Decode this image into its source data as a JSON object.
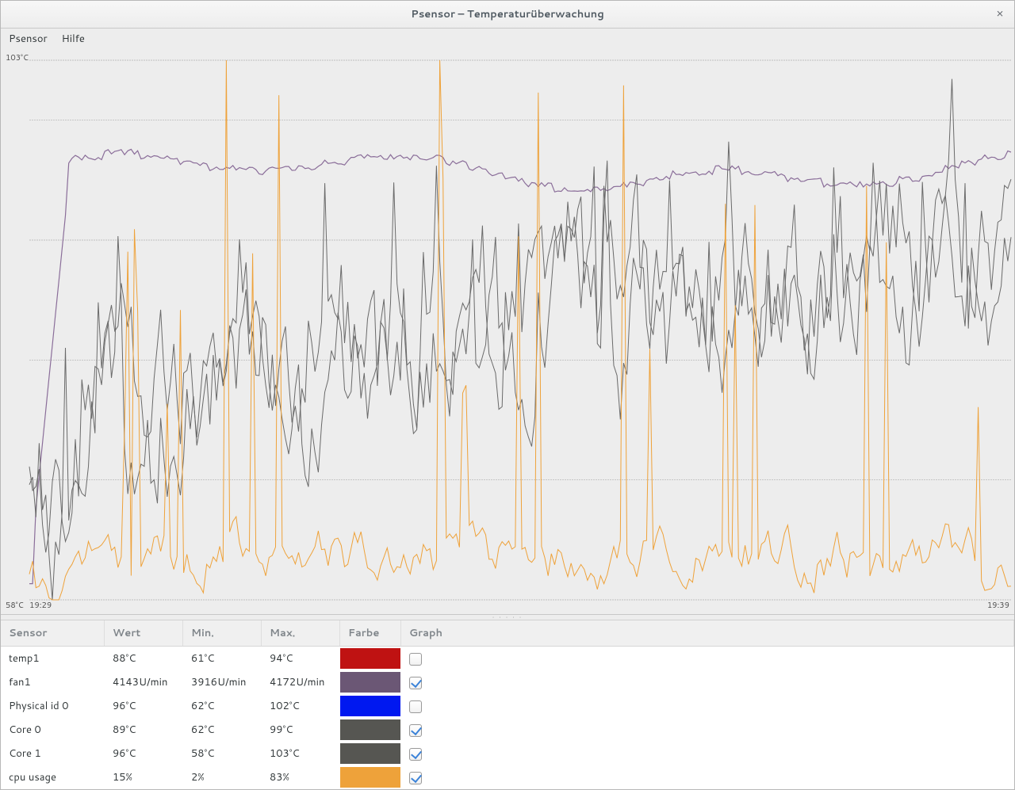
{
  "window": {
    "title": "Psensor – Temperaturüberwachung",
    "close_tooltip": "Schließen"
  },
  "menu": {
    "items": [
      "Psensor",
      "Hilfe"
    ]
  },
  "chart": {
    "type": "line",
    "background": "#ededed",
    "grid_color": "#b0b0b0",
    "grid_dash": "2,1",
    "label_color": "#4a4a4a",
    "label_fontsize": 10,
    "y_axis": {
      "min": 58,
      "max": 103,
      "unit": "°C",
      "top_label": "103°C",
      "bottom_label": "58°C",
      "gridlines": [
        58,
        68,
        78,
        88,
        98,
        103
      ]
    },
    "x_axis": {
      "left_label": "19:29",
      "right_label": "19:39",
      "samples": 300
    },
    "series": [
      {
        "id": "fan1",
        "color": "#8a6d99",
        "stroke_width": 1.2,
        "base": 0.8,
        "noise": 0.03,
        "drift": 0.02,
        "spikes": 0.0
      },
      {
        "id": "core0",
        "color": "#6a6a6a",
        "stroke_width": 1.0,
        "base": 0.38,
        "noise": 0.14,
        "drift": 0.25,
        "spikes": 0.05
      },
      {
        "id": "core1",
        "color": "#6a6a6a",
        "stroke_width": 1.0,
        "base": 0.34,
        "noise": 0.16,
        "drift": 0.28,
        "spikes": 0.06
      },
      {
        "id": "cpu",
        "color": "#eea23a",
        "stroke_width": 1.0,
        "base": 0.08,
        "noise": 0.05,
        "drift": 0.0,
        "spikes": 0.25
      }
    ],
    "initial_lows": true
  },
  "table": {
    "columns": [
      "Sensor",
      "Wert",
      "Min.",
      "Max.",
      "Farbe",
      "Graph"
    ],
    "rows": [
      {
        "sensor": "temp1",
        "wert": "88°C",
        "min": "61°C",
        "max": "94°C",
        "color": "#bf1212",
        "graph": false
      },
      {
        "sensor": "fan1",
        "wert": "4143U/min",
        "min": "3916U/min",
        "max": "4172U/min",
        "color": "#6b5775",
        "graph": true
      },
      {
        "sensor": "Physical id 0",
        "wert": "96°C",
        "min": "62°C",
        "max": "102°C",
        "color": "#0018f0",
        "graph": false
      },
      {
        "sensor": "Core 0",
        "wert": "89°C",
        "min": "62°C",
        "max": "99°C",
        "color": "#565652",
        "graph": true
      },
      {
        "sensor": "Core 1",
        "wert": "96°C",
        "min": "58°C",
        "max": "103°C",
        "color": "#565652",
        "graph": true
      },
      {
        "sensor": "cpu usage",
        "wert": "15%",
        "min": "2%",
        "max": "83%",
        "color": "#eea23a",
        "graph": true
      }
    ]
  }
}
